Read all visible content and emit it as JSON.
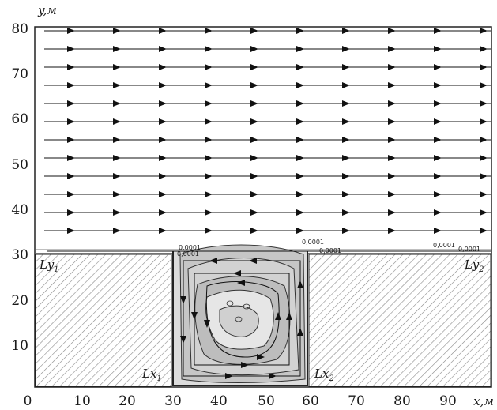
{
  "axes": {
    "x_name": "x,м",
    "y_name": "y,м",
    "x_ticks": [
      "0",
      "10",
      "20",
      "30",
      "40",
      "50",
      "60",
      "70",
      "80",
      "90"
    ],
    "y_ticks": [
      "10",
      "20",
      "30",
      "40",
      "50",
      "60",
      "70",
      "80"
    ],
    "xlim": [
      0,
      100
    ],
    "ylim": [
      0,
      80
    ]
  },
  "regions": {
    "left_obstacle_label": "Ly",
    "left_obstacle_sub": "1",
    "right_obstacle_label": "Ly",
    "right_obstacle_sub": "2",
    "cavity_left_label": "Lx",
    "cavity_left_sub": "1",
    "cavity_right_label": "Lx",
    "cavity_right_sub": "2"
  },
  "contour_labels": [
    "0,0001",
    "0,0001",
    "0,0001",
    "0,0001",
    "0,0001",
    "0,0001"
  ],
  "colors": {
    "axis": "#222222",
    "hatch": "#8a8a8a",
    "cavity_outer": "#d9d9d9",
    "cavity_inner": "#bdbdbd",
    "cavity_core": "#e6e6e6",
    "streamline": "#111111"
  }
}
